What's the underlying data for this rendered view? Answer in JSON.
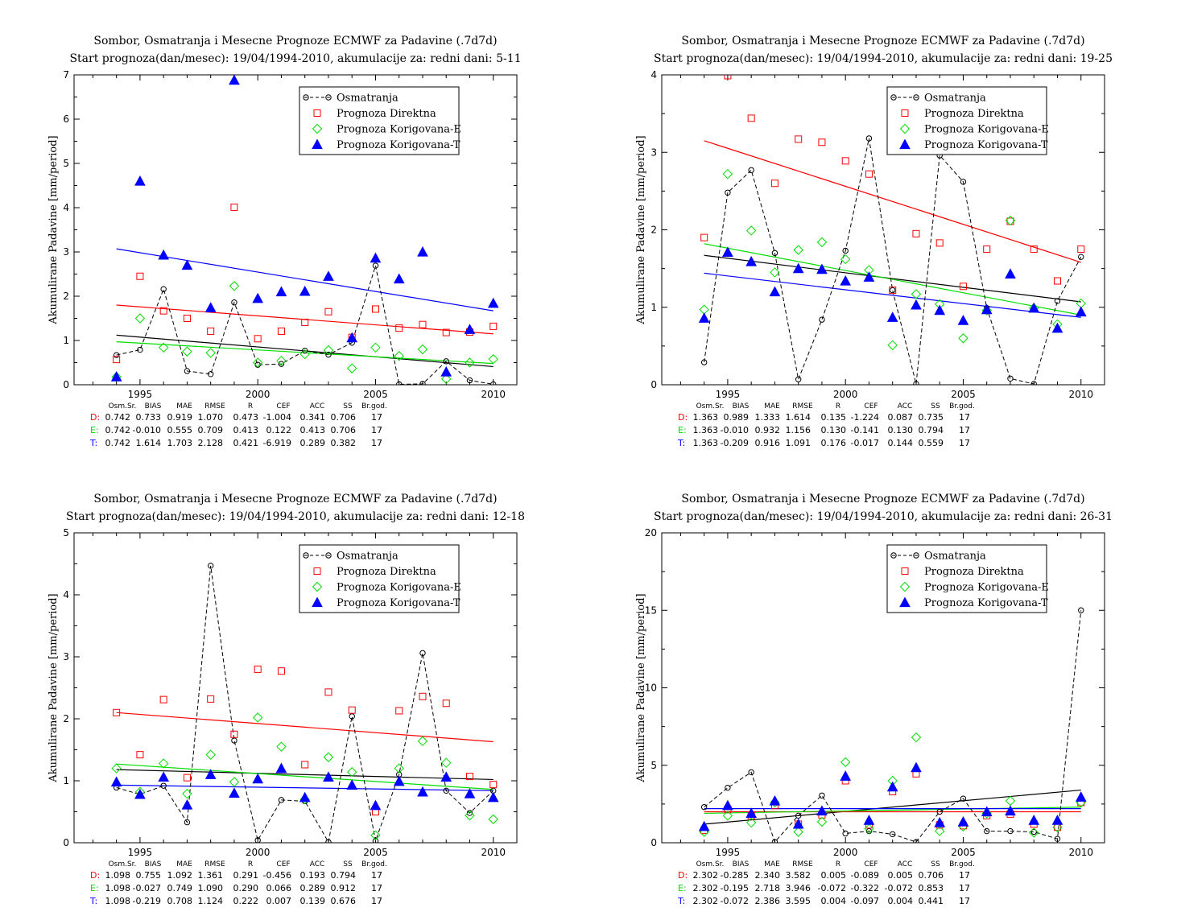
{
  "chart_data": [
    {
      "type": "line",
      "title": "Sombor, Osmatranja i Mesecne Prognoze ECMWF za Padavine (.7d7d)",
      "subtitle": "Start prognoza(dan/mesec): 19/04/1994-2010, akumulacije za: redni dani: 5-11",
      "ylabel": "Akumulirane Padavine [mm/period]",
      "xlim": [
        1992.2,
        2011
      ],
      "ylim": [
        0,
        7
      ],
      "xticks": [
        1995,
        2000,
        2005,
        2010
      ],
      "yticks": [
        0,
        1,
        2,
        3,
        4,
        5,
        6,
        7
      ],
      "x": [
        1994,
        1995,
        1996,
        1997,
        1998,
        1999,
        2000,
        2001,
        2002,
        2003,
        2004,
        2005,
        2006,
        2007,
        2008,
        2009,
        2010
      ],
      "legend_position": "top-right",
      "series": [
        {
          "name": "Osmatranja",
          "key": "obs",
          "color": "#000000",
          "values": [
            0.67,
            0.79,
            2.16,
            0.31,
            0.24,
            1.86,
            0.45,
            0.47,
            0.77,
            0.68,
            0.95,
            2.69,
            0.01,
            0.02,
            0.53,
            0.1,
            0.01
          ]
        },
        {
          "name": "Prognoza Direktna",
          "key": "D",
          "color": "#ff0000",
          "values": [
            0.57,
            2.45,
            1.67,
            1.5,
            1.21,
            4.01,
            1.04,
            1.21,
            1.41,
            1.65,
            1.07,
            1.71,
            1.28,
            1.36,
            1.18,
            1.19,
            1.32
          ]
        },
        {
          "name": "Prognoza Korigovana-E",
          "key": "E",
          "color": "#00dd00",
          "values": [
            0.18,
            1.5,
            0.84,
            0.75,
            0.72,
            2.23,
            0.5,
            0.54,
            0.69,
            0.78,
            0.37,
            0.84,
            0.65,
            0.8,
            0.13,
            0.5,
            0.58
          ]
        },
        {
          "name": "Prognoza Korigovana-T",
          "key": "T",
          "color": "#0000ff",
          "values": [
            0.18,
            4.6,
            2.93,
            2.7,
            1.74,
            6.88,
            1.95,
            2.1,
            2.11,
            2.45,
            1.06,
            2.86,
            2.39,
            3.0,
            0.29,
            1.25,
            1.84
          ]
        }
      ],
      "trend_lines": [
        {
          "key": "obs",
          "color": "#000000",
          "y_start": 1.12,
          "y_end": 0.41
        },
        {
          "key": "D",
          "color": "#ff0000",
          "y_start": 1.8,
          "y_end": 1.15
        },
        {
          "key": "E",
          "color": "#00dd00",
          "y_start": 0.97,
          "y_end": 0.48
        },
        {
          "key": "T",
          "color": "#0000ff",
          "y_start": 3.07,
          "y_end": 1.67
        }
      ],
      "stats": {
        "headers": [
          "Osm.Sr.",
          "BIAS",
          "MAE",
          "RMSE",
          "R",
          "CEF",
          "ACC",
          "SS",
          "Br.god."
        ],
        "rows": [
          {
            "label": "D:",
            "color": "#ff0000",
            "values": [
              "0.742",
              "0.733",
              "0.919",
              "1.070",
              "0.473",
              "-1.004",
              "0.341",
              "0.706",
              "17"
            ]
          },
          {
            "label": "E:",
            "color": "#00dd00",
            "values": [
              "0.742",
              "-0.010",
              "0.555",
              "0.709",
              "0.413",
              "0.122",
              "0.413",
              "0.706",
              "17"
            ]
          },
          {
            "label": "T:",
            "color": "#0000ff",
            "values": [
              "0.742",
              "1.614",
              "1.703",
              "2.128",
              "0.421",
              "-6.919",
              "0.289",
              "0.382",
              "17"
            ]
          }
        ]
      }
    },
    {
      "type": "line",
      "title": "Sombor, Osmatranja i Mesecne Prognoze ECMWF za Padavine (.7d7d)",
      "subtitle": "Start prognoza(dan/mesec): 19/04/1994-2010, akumulacije za: redni dani: 19-25",
      "ylabel": "Akumulirane Padavine [mm/period]",
      "xlim": [
        1992.2,
        2011
      ],
      "ylim": [
        0,
        4
      ],
      "xticks": [
        1995,
        2000,
        2005,
        2010
      ],
      "yticks": [
        0,
        1,
        2,
        3,
        4
      ],
      "x": [
        1994,
        1995,
        1996,
        1997,
        1998,
        1999,
        2000,
        2001,
        2002,
        2003,
        2004,
        2005,
        2006,
        2007,
        2008,
        2009,
        2010
      ],
      "legend_position": "top-right",
      "series": [
        {
          "name": "Osmatranja",
          "key": "obs",
          "color": "#000000",
          "values": [
            0.29,
            2.48,
            2.77,
            1.7,
            0.07,
            0.84,
            1.73,
            3.18,
            1.22,
            0.01,
            2.96,
            2.62,
            0.99,
            0.08,
            0.01,
            1.08,
            1.65
          ]
        },
        {
          "name": "Prognoza Direktna",
          "key": "D",
          "color": "#ff0000",
          "values": [
            1.9,
            3.99,
            3.44,
            2.6,
            3.17,
            3.13,
            2.89,
            2.72,
            1.22,
            1.95,
            1.83,
            1.27,
            1.75,
            2.11,
            1.75,
            1.34,
            1.75
          ]
        },
        {
          "name": "Prognoza Korigovana-E",
          "key": "E",
          "color": "#00dd00",
          "values": [
            0.97,
            2.72,
            1.99,
            1.45,
            1.74,
            1.84,
            1.62,
            1.48,
            0.51,
            1.17,
            1.04,
            0.6,
            0.96,
            2.12,
            0.99,
            0.78,
            1.05
          ]
        },
        {
          "name": "Prognoza Korigovana-T",
          "key": "T",
          "color": "#0000ff",
          "values": [
            0.86,
            1.71,
            1.59,
            1.2,
            1.5,
            1.49,
            1.34,
            1.39,
            0.87,
            1.03,
            0.96,
            0.83,
            0.97,
            1.43,
            0.99,
            0.73,
            0.94
          ]
        }
      ],
      "trend_lines": [
        {
          "key": "obs",
          "color": "#000000",
          "y_start": 1.67,
          "y_end": 1.07
        },
        {
          "key": "D",
          "color": "#ff0000",
          "y_start": 3.15,
          "y_end": 1.58
        },
        {
          "key": "E",
          "color": "#00dd00",
          "y_start": 1.82,
          "y_end": 0.9
        },
        {
          "key": "T",
          "color": "#0000ff",
          "y_start": 1.44,
          "y_end": 0.87
        }
      ],
      "stats": {
        "headers": [
          "Osm.Sr.",
          "BIAS",
          "MAE",
          "RMSE",
          "R",
          "CEF",
          "ACC",
          "SS",
          "Br.god."
        ],
        "rows": [
          {
            "label": "D:",
            "color": "#ff0000",
            "values": [
              "1.363",
              "0.989",
              "1.333",
              "1.614",
              "0.135",
              "-1.224",
              "0.087",
              "0.735",
              "17"
            ]
          },
          {
            "label": "E:",
            "color": "#00dd00",
            "values": [
              "1.363",
              "-0.010",
              "0.932",
              "1.156",
              "0.130",
              "-0.141",
              "0.130",
              "0.794",
              "17"
            ]
          },
          {
            "label": "T:",
            "color": "#0000ff",
            "values": [
              "1.363",
              "-0.209",
              "0.916",
              "1.091",
              "0.176",
              "-0.017",
              "0.144",
              "0.559",
              "17"
            ]
          }
        ]
      }
    },
    {
      "type": "line",
      "title": "Sombor, Osmatranja i Mesecne Prognoze ECMWF za Padavine (.7d7d)",
      "subtitle": "Start prognoza(dan/mesec): 19/04/1994-2010, akumulacije za: redni dani: 12-18",
      "ylabel": "Akumulirane Padavine [mm/period]",
      "xlim": [
        1992.2,
        2011
      ],
      "ylim": [
        0,
        5
      ],
      "xticks": [
        1995,
        2000,
        2005,
        2010
      ],
      "yticks": [
        0,
        1,
        2,
        3,
        4,
        5
      ],
      "x": [
        1994,
        1995,
        1996,
        1997,
        1998,
        1999,
        2000,
        2001,
        2002,
        2003,
        2004,
        2005,
        2006,
        2007,
        2008,
        2009,
        2010
      ],
      "legend_position": "top-right",
      "series": [
        {
          "name": "Osmatranja",
          "key": "obs",
          "color": "#000000",
          "values": [
            0.89,
            0.78,
            0.92,
            0.33,
            4.47,
            1.65,
            0.04,
            0.69,
            0.67,
            0.01,
            2.04,
            0.03,
            1.1,
            3.06,
            0.84,
            0.48,
            0.84
          ]
        },
        {
          "name": "Prognoza Direktna",
          "key": "D",
          "color": "#ff0000",
          "values": [
            2.1,
            1.42,
            2.31,
            1.05,
            2.32,
            1.75,
            2.8,
            2.77,
            1.26,
            2.43,
            2.14,
            0.5,
            2.13,
            2.36,
            2.25,
            1.07,
            0.94
          ]
        },
        {
          "name": "Prognoza Korigovana-E",
          "key": "E",
          "color": "#00dd00",
          "values": [
            1.2,
            0.82,
            1.28,
            0.79,
            1.42,
            0.98,
            2.02,
            1.55,
            0.7,
            1.38,
            1.14,
            0.12,
            1.2,
            1.64,
            1.29,
            0.44,
            0.38
          ]
        },
        {
          "name": "Prognoza Korigovana-T",
          "key": "T",
          "color": "#0000ff",
          "values": [
            0.98,
            0.78,
            1.06,
            0.61,
            1.1,
            0.8,
            1.03,
            1.2,
            0.73,
            1.06,
            0.93,
            0.6,
            0.99,
            0.82,
            1.06,
            0.79,
            0.73
          ]
        }
      ],
      "trend_lines": [
        {
          "key": "obs",
          "color": "#000000",
          "y_start": 1.18,
          "y_end": 1.02
        },
        {
          "key": "D",
          "color": "#ff0000",
          "y_start": 2.1,
          "y_end": 1.63
        },
        {
          "key": "E",
          "color": "#00dd00",
          "y_start": 1.27,
          "y_end": 0.86
        },
        {
          "key": "T",
          "color": "#0000ff",
          "y_start": 0.93,
          "y_end": 0.84
        }
      ],
      "stats": {
        "headers": [
          "Osm.Sr.",
          "BIAS",
          "MAE",
          "RMSE",
          "R",
          "CEF",
          "ACC",
          "SS",
          "Br.god."
        ],
        "rows": [
          {
            "label": "D:",
            "color": "#ff0000",
            "values": [
              "1.098",
              "0.755",
              "1.092",
              "1.361",
              "0.291",
              "-0.456",
              "0.193",
              "0.794",
              "17"
            ]
          },
          {
            "label": "E:",
            "color": "#00dd00",
            "values": [
              "1.098",
              "-0.027",
              "0.749",
              "1.090",
              "0.290",
              "0.066",
              "0.289",
              "0.912",
              "17"
            ]
          },
          {
            "label": "T:",
            "color": "#0000ff",
            "values": [
              "1.098",
              "-0.219",
              "0.708",
              "1.124",
              "0.222",
              "0.007",
              "0.139",
              "0.676",
              "17"
            ]
          }
        ]
      }
    },
    {
      "type": "line",
      "title": "Sombor, Osmatranja i Mesecne Prognoze ECMWF za Padavine (.7d7d)",
      "subtitle": "Start prognoza(dan/mesec): 19/04/1994-2010, akumulacije za: redni dani: 26-31",
      "ylabel": "Akumulirane Padavine [mm/period]",
      "xlim": [
        1992.2,
        2011
      ],
      "ylim": [
        0,
        20
      ],
      "xticks": [
        1995,
        2000,
        2005,
        2010
      ],
      "yticks": [
        0,
        5,
        10,
        15,
        20
      ],
      "x": [
        1994,
        1995,
        1996,
        1997,
        1998,
        1999,
        2000,
        2001,
        2002,
        2003,
        2004,
        2005,
        2006,
        2007,
        2008,
        2009,
        2010
      ],
      "legend_position": "top-right",
      "series": [
        {
          "name": "Osmatranja",
          "key": "obs",
          "color": "#000000",
          "values": [
            2.3,
            3.55,
            4.55,
            0.05,
            1.75,
            3.05,
            0.6,
            0.75,
            0.55,
            0.05,
            2.0,
            2.85,
            0.75,
            0.75,
            0.7,
            0.25,
            15.0
          ]
        },
        {
          "name": "Prognoza Direktna",
          "key": "D",
          "color": "#ff0000",
          "values": [
            0.8,
            2.15,
            1.75,
            2.4,
            1.2,
            1.8,
            4.0,
            1.15,
            3.3,
            4.45,
            1.15,
            1.1,
            1.75,
            1.85,
            1.2,
            1.0,
            2.6
          ]
        },
        {
          "name": "Prognoza Korigovana-E",
          "key": "E",
          "color": "#00dd00",
          "values": [
            0.7,
            1.75,
            1.3,
            2.6,
            0.7,
            1.35,
            5.2,
            0.9,
            4.0,
            6.8,
            0.75,
            1.05,
            1.9,
            2.7,
            0.65,
            1.0,
            2.6
          ]
        },
        {
          "name": "Prognoza Korigovana-T",
          "key": "T",
          "color": "#0000ff",
          "values": [
            1.05,
            2.4,
            1.9,
            2.7,
            1.2,
            2.05,
            4.3,
            1.45,
            3.6,
            4.85,
            1.3,
            1.35,
            2.0,
            2.05,
            1.45,
            1.45,
            2.95
          ]
        }
      ],
      "trend_lines": [
        {
          "key": "obs",
          "color": "#000000",
          "y_start": 1.2,
          "y_end": 3.4
        },
        {
          "key": "D",
          "color": "#ff0000",
          "y_start": 2.0,
          "y_end": 2.0
        },
        {
          "key": "E",
          "color": "#00dd00",
          "y_start": 1.9,
          "y_end": 2.3
        },
        {
          "key": "T",
          "color": "#0000ff",
          "y_start": 2.2,
          "y_end": 2.2
        }
      ],
      "stats": {
        "headers": [
          "Osm.Sr.",
          "BIAS",
          "MAE",
          "RMSE",
          "R",
          "CEF",
          "ACC",
          "SS",
          "Br.god."
        ],
        "rows": [
          {
            "label": "D:",
            "color": "#ff0000",
            "values": [
              "2.302",
              "-0.285",
              "2.340",
              "3.582",
              "0.005",
              "-0.089",
              "0.005",
              "0.706",
              "17"
            ]
          },
          {
            "label": "E:",
            "color": "#00dd00",
            "values": [
              "2.302",
              "-0.195",
              "2.718",
              "3.946",
              "-0.072",
              "-0.322",
              "-0.072",
              "0.853",
              "17"
            ]
          },
          {
            "label": "T:",
            "color": "#0000ff",
            "values": [
              "2.302",
              "-0.072",
              "2.386",
              "3.595",
              "0.004",
              "-0.097",
              "0.004",
              "0.441",
              "17"
            ]
          }
        ]
      }
    }
  ]
}
